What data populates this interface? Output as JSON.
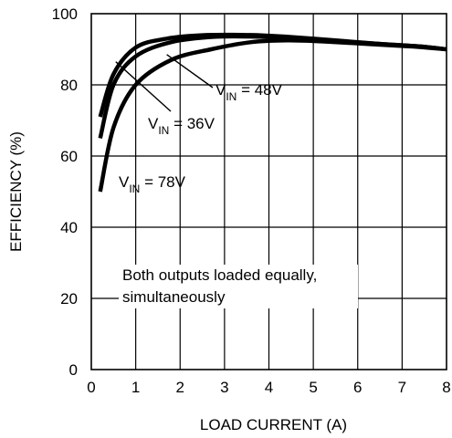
{
  "chart_data": {
    "type": "line",
    "xlabel": "LOAD CURRENT (A)",
    "ylabel": "EFFICIENCY (%)",
    "xlim": [
      0,
      8
    ],
    "ylim": [
      0,
      100
    ],
    "xticks": [
      "0",
      "1",
      "2",
      "3",
      "4",
      "5",
      "6",
      "7",
      "8"
    ],
    "yticks": [
      "0",
      "20",
      "40",
      "60",
      "80",
      "100"
    ],
    "grid": true,
    "series": [
      {
        "name_main": "V",
        "name_sub": "IN",
        "name_rest": " = 36V",
        "x": [
          0.2,
          0.5,
          1.0,
          1.7,
          2.6,
          3.6,
          4.4,
          5.5,
          6.5,
          7.4,
          8.0
        ],
        "y": [
          71,
          83,
          90.5,
          93,
          94,
          94,
          93.5,
          92.5,
          91.5,
          90.8,
          90
        ]
      },
      {
        "name_main": "V",
        "name_sub": "IN",
        "name_rest": " = 48V",
        "x": [
          0.2,
          0.5,
          1.0,
          1.8,
          2.8,
          3.8,
          4.6,
          5.5,
          6.5,
          7.4,
          8.0
        ],
        "y": [
          65,
          80,
          88,
          92,
          93.5,
          93.5,
          93,
          92.3,
          91.5,
          90.8,
          90
        ]
      },
      {
        "name_main": "V",
        "name_sub": "IN",
        "name_rest": " = 78V",
        "x": [
          0.2,
          0.5,
          1.0,
          1.8,
          2.7,
          3.6,
          4.4,
          5.2,
          6.2,
          7.2,
          8.0
        ],
        "y": [
          50,
          68,
          80,
          87,
          90,
          92,
          92.5,
          92.2,
          91.5,
          90.8,
          90
        ]
      }
    ],
    "annotation": [
      "Both outputs loaded equally,",
      "simultaneously"
    ]
  }
}
